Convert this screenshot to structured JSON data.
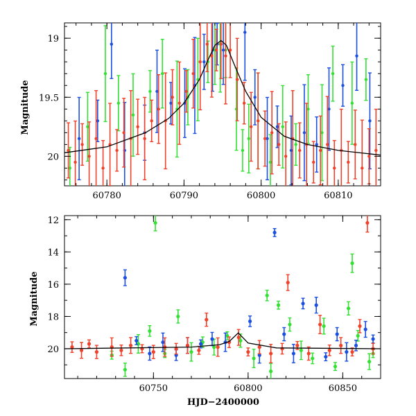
{
  "chart_data": [
    {
      "type": "scatter",
      "title": "",
      "xlabel": "",
      "ylabel": "Magnitude",
      "xlim": [
        60774.5,
        60815.5
      ],
      "ylim": [
        20.25,
        18.87
      ],
      "y_inverted": true,
      "xticks": [
        60780,
        60790,
        60800,
        60810
      ],
      "yticks": [
        19,
        19.5,
        20
      ],
      "grid": false,
      "colors": {
        "green": "#33e033",
        "blue": "#1a4fe0",
        "red": "#f0412a",
        "model": "#000000"
      },
      "model_curve": {
        "name": "",
        "x": [
          60774.5,
          60780,
          60785,
          60788,
          60790,
          60792,
          60793,
          60794,
          60794.8,
          60795.5,
          60796.5,
          60798,
          60800,
          60803,
          60806,
          60810,
          60815.5
        ],
        "y": [
          19.97,
          19.92,
          19.8,
          19.68,
          19.55,
          19.35,
          19.2,
          19.06,
          19.02,
          19.06,
          19.22,
          19.45,
          19.67,
          19.83,
          19.9,
          19.95,
          19.99
        ]
      },
      "series": [
        {
          "name": "",
          "color": "green",
          "x": [
            60775.2,
            60777.5,
            60779.8,
            60781.5,
            60783.4,
            60785.6,
            60787.2,
            60789.1,
            60790.5,
            60791.8,
            60793.1,
            60794.0,
            60794.7,
            60795.4,
            60796.8,
            60797.6,
            60798.4,
            60799.6,
            60801.2,
            60802.8,
            60804.5,
            60806.1,
            60807.9,
            60809.3,
            60811.8,
            60813.6
          ],
          "y": [
            20.1,
            19.75,
            19.3,
            19.55,
            19.65,
            19.45,
            19.3,
            19.6,
            19.5,
            19.35,
            19.2,
            19.1,
            19.05,
            19.1,
            19.6,
            19.95,
            19.85,
            19.7,
            20.05,
            19.75,
            19.9,
            19.6,
            19.8,
            19.3,
            19.55,
            19.35
          ]
        },
        {
          "name": "",
          "color": "blue",
          "x": [
            60776.4,
            60778.8,
            60780.6,
            60782.3,
            60784.9,
            60786.5,
            60788.3,
            60790.1,
            60791.4,
            60792.6,
            60793.7,
            60794.3,
            60795.1,
            60797.9,
            60799.2,
            60800.8,
            60802.1,
            60803.9,
            60805.6,
            60807.2,
            60808.8,
            60810.6,
            60812.4,
            60814.1
          ],
          "y": [
            19.85,
            19.7,
            19.05,
            19.95,
            19.8,
            19.45,
            19.55,
            19.55,
            19.4,
            19.2,
            19.1,
            19.05,
            19.1,
            18.95,
            19.5,
            19.85,
            19.75,
            19.95,
            19.8,
            19.9,
            19.6,
            19.4,
            19.15,
            19.7
          ]
        },
        {
          "name": "",
          "color": "red",
          "x": [
            60775.0,
            60775.9,
            60776.8,
            60777.7,
            60778.6,
            60779.5,
            60780.4,
            60781.3,
            60782.2,
            60783.1,
            60784.0,
            60784.9,
            60785.8,
            60786.7,
            60787.6,
            60788.5,
            60789.4,
            60790.3,
            60791.2,
            60792.1,
            60793.0,
            60793.6,
            60794.2,
            60794.8,
            60795.4,
            60796.0,
            60796.9,
            60797.8,
            60798.7,
            60799.6,
            60800.5,
            60801.4,
            60802.3,
            60803.2,
            60804.1,
            60805.0,
            60805.9,
            60806.8,
            60807.7,
            60808.6,
            60809.5,
            60810.4,
            60811.3,
            60812.2,
            60813.1,
            60814.0,
            60814.9
          ],
          "y": [
            19.95,
            20.05,
            19.9,
            20.0,
            19.85,
            20.1,
            19.9,
            19.95,
            19.8,
            19.85,
            19.75,
            19.85,
            19.7,
            19.6,
            19.7,
            19.5,
            19.55,
            19.45,
            19.3,
            19.2,
            19.05,
            19.15,
            19.1,
            19.05,
            19.15,
            19.1,
            19.35,
            19.55,
            19.75,
            19.7,
            19.85,
            19.8,
            19.9,
            20.0,
            19.85,
            19.95,
            19.9,
            20.05,
            19.95,
            19.9,
            20.1,
            19.95,
            20.05,
            19.9,
            20.1,
            20.0,
            19.95
          ]
        }
      ]
    },
    {
      "type": "scatter",
      "title": "",
      "xlabel": "HJD−2400000",
      "ylabel": "Magnitude",
      "xlim": [
        60703,
        60870
      ],
      "ylim": [
        21.85,
        11.75
      ],
      "y_inverted": true,
      "xticks": [
        60750,
        60800,
        60850
      ],
      "yticks": [
        12,
        14,
        16,
        18,
        20
      ],
      "grid": false,
      "colors": {
        "green": "#33e033",
        "blue": "#1a4fe0",
        "red": "#f0412a",
        "model": "#000000"
      },
      "model_curve": {
        "name": "",
        "x": [
          60703,
          60770,
          60785,
          60790,
          60794.8,
          60800,
          60815,
          60870
        ],
        "y": [
          20.0,
          19.9,
          19.75,
          19.55,
          19.02,
          19.65,
          19.95,
          20.0
        ]
      },
      "series": [
        {
          "name": "",
          "color": "green",
          "x": [
            60728,
            60735,
            60742,
            60748,
            60751,
            60756,
            60763,
            60770,
            60776,
            60782,
            60789,
            60796,
            60803,
            60810,
            60812,
            60816,
            60822,
            60828,
            60834,
            60840,
            60846,
            60853,
            60855,
            60858,
            60864,
            60866
          ],
          "y": [
            20.4,
            21.3,
            19.7,
            18.9,
            12.2,
            20.3,
            18.0,
            20.2,
            19.6,
            19.9,
            19.2,
            19.5,
            20.6,
            16.7,
            21.4,
            17.3,
            18.5,
            20.1,
            20.6,
            18.6,
            21.1,
            17.5,
            14.7,
            19.2,
            20.8,
            20.3
          ]
        },
        {
          "name": "",
          "color": "blue",
          "x": [
            60735,
            60741,
            60748,
            60755,
            60762,
            60768,
            60775,
            60781,
            60788,
            60801,
            60806,
            60814,
            60819,
            60824,
            60829,
            60836,
            60841,
            60847,
            60852,
            60857,
            60862,
            60866
          ],
          "y": [
            15.6,
            19.5,
            20.3,
            19.6,
            20.4,
            19.8,
            19.7,
            19.4,
            19.6,
            18.3,
            20.4,
            12.8,
            19.1,
            20.3,
            17.2,
            17.3,
            20.5,
            19.1,
            20.2,
            19.8,
            18.8,
            19.4
          ]
        },
        {
          "name": "",
          "color": "red",
          "x": [
            60707,
            60712,
            60716,
            60720,
            60728,
            60733,
            60738,
            60744,
            60750,
            60756,
            60762,
            60768,
            60774,
            60778,
            60784,
            60790,
            60795,
            60800,
            60806,
            60812,
            60818,
            60821,
            60826,
            60832,
            60838,
            60843,
            60849,
            60855,
            60859,
            60863,
            60866
          ],
          "y": [
            19.9,
            20.1,
            19.7,
            20.2,
            19.9,
            20.1,
            19.8,
            20.0,
            20.2,
            19.9,
            20.0,
            19.8,
            20.1,
            18.2,
            19.9,
            19.6,
            19.3,
            20.2,
            19.9,
            20.3,
            20.0,
            15.9,
            19.8,
            20.3,
            18.5,
            20.1,
            19.8,
            20.2,
            18.6,
            12.2,
            20.0
          ]
        }
      ]
    }
  ]
}
